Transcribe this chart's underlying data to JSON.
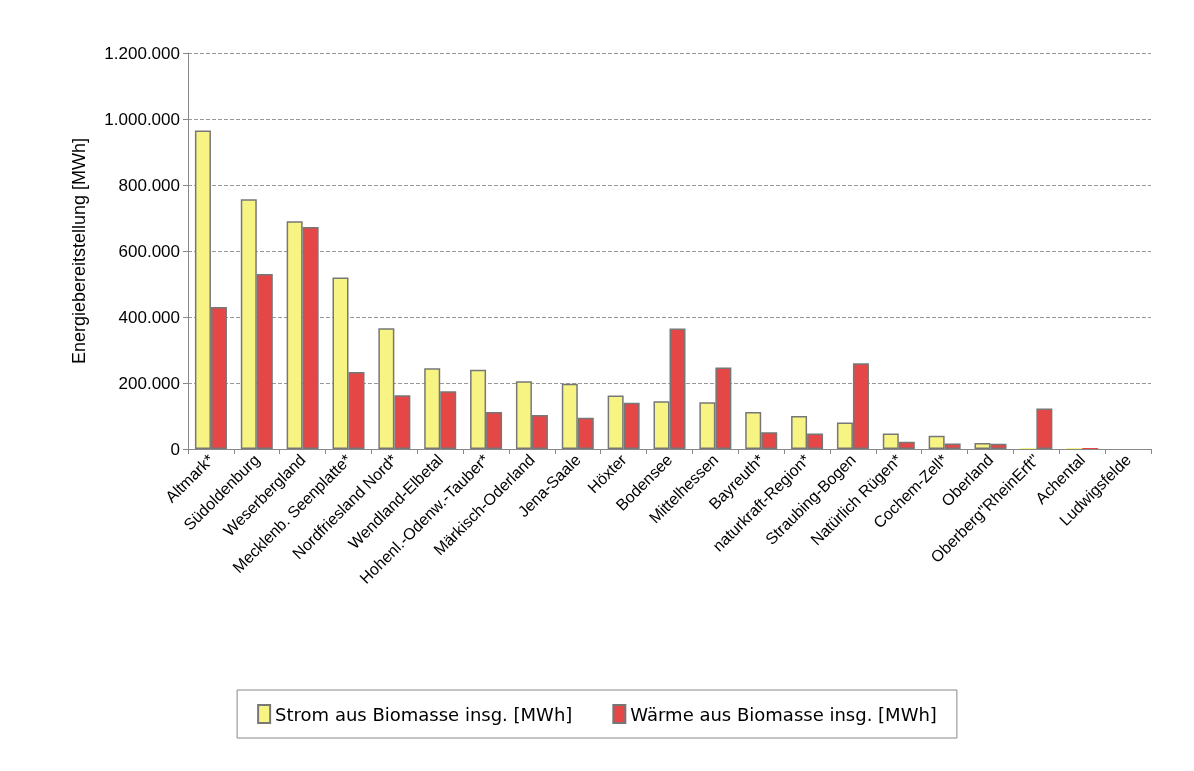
{
  "chart_data": {
    "type": "bar",
    "ylabel": "Energiebereitstellung [MWh]",
    "categories": [
      "Altmark*",
      "Südoldenburg",
      "Weserbergland",
      "Mecklenb. Seenplatte*",
      "Nordfriesland Nord*",
      "Wendland-Elbetal",
      "Hohenl.-Odenw.-Tauber*",
      "Märkisch-Oderland",
      "Jena-Saale",
      "Höxter",
      "Bodensee",
      "Mittelhessen",
      "Bayreuth*",
      "naturkraft-Region*",
      "Straubing-Bogen",
      "Natürlich Rügen*",
      "Cochem-Zell*",
      "Oberland",
      "Oberberg\"RheinErft\"",
      "Achental",
      "Ludwigsfelde"
    ],
    "series": [
      {
        "name": "Strom aus Biomasse insg. [MWh]",
        "color": "#f8f484",
        "values": [
          965000,
          757000,
          690000,
          520000,
          366000,
          245000,
          240000,
          205000,
          198000,
          162000,
          145000,
          142000,
          112000,
          100000,
          80000,
          47000,
          40000,
          18000,
          3000,
          3000,
          null
        ]
      },
      {
        "name": "Wärme aus Biomasse insg. [MWh]",
        "color": "#e54646",
        "values": [
          430000,
          530000,
          673000,
          233000,
          163000,
          175000,
          112000,
          103000,
          95000,
          140000,
          365000,
          247000,
          51000,
          47000,
          260000,
          22000,
          17000,
          16000,
          123000,
          3000,
          null
        ]
      }
    ],
    "ylim": [
      0,
      1200000
    ],
    "yticks": [
      0,
      {
        "value": 200000,
        "label": "200.000"
      },
      {
        "value": 400000,
        "label": "400.000"
      },
      {
        "value": 600000,
        "label": "600.000"
      },
      {
        "value": 800000,
        "label": "800.000"
      },
      {
        "value": 1000000,
        "label": "1.000.000"
      },
      {
        "value": 1200000,
        "label": "1.200.000"
      }
    ],
    "grid": "y",
    "legend": "bottom"
  }
}
